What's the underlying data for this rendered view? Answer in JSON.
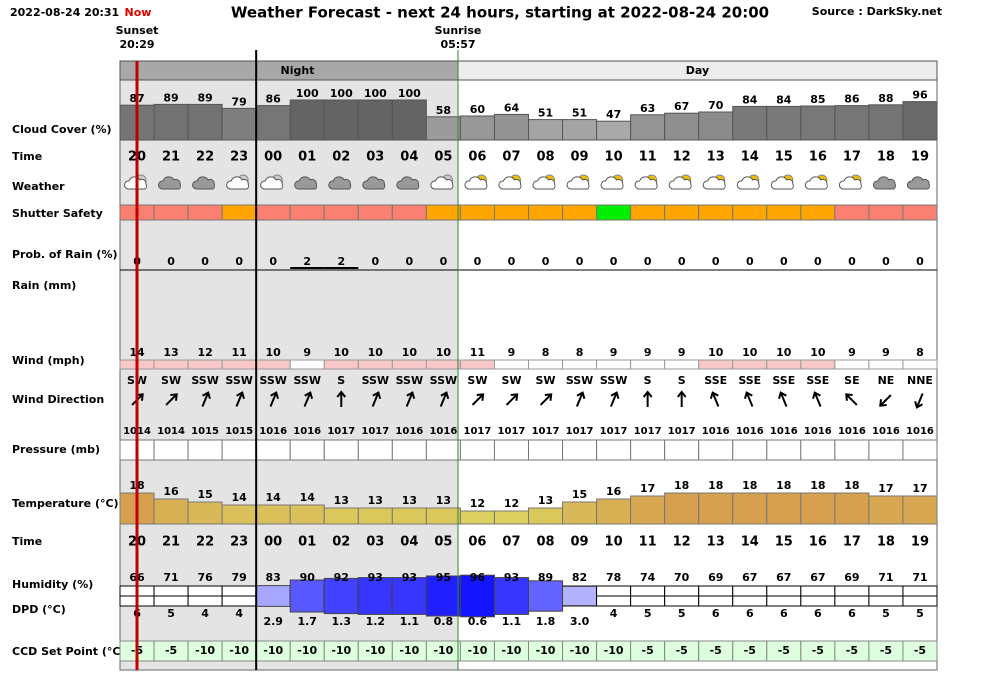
{
  "header": {
    "timestamp": "2022-08-24 20:31",
    "now": "Now",
    "title": "Weather Forecast - next 24 hours, starting at 2022-08-24 20:00",
    "source": "Source : DarkSky.net"
  },
  "sunset": {
    "label": "Sunset",
    "time": "20:29"
  },
  "sunrise": {
    "label": "Sunrise",
    "time": "05:57"
  },
  "periods": [
    "Night",
    "Day"
  ],
  "row_labels": [
    "Cloud Cover (%)",
    "Time",
    "Weather",
    "Shutter Safety",
    "Prob. of Rain (%)",
    "Rain (mm)",
    "Wind (mph)",
    "Wind Direction",
    "Pressure (mb)",
    "Temperature (°C)",
    "Time",
    "Humidity (%)",
    "DPD (°C)",
    "CCD Set Point (°C)"
  ],
  "hours": [
    "20",
    "21",
    "22",
    "23",
    "00",
    "01",
    "02",
    "03",
    "04",
    "05",
    "06",
    "07",
    "08",
    "09",
    "10",
    "11",
    "12",
    "13",
    "14",
    "15",
    "16",
    "17",
    "18",
    "19"
  ],
  "cloud_cover": [
    87,
    89,
    89,
    79,
    86,
    100,
    100,
    100,
    100,
    58,
    60,
    64,
    51,
    51,
    47,
    63,
    67,
    70,
    84,
    84,
    85,
    86,
    88,
    96
  ],
  "shutter_safety_colors": [
    "#fa8072",
    "#fa8072",
    "#fa8072",
    "#ffa500",
    "#fa8072",
    "#fa8072",
    "#fa8072",
    "#fa8072",
    "#fa8072",
    "#ffa500",
    "#ffa500",
    "#ffa500",
    "#ffa500",
    "#ffa500",
    "#00ee00",
    "#ffa500",
    "#ffa500",
    "#ffa500",
    "#ffa500",
    "#ffa500",
    "#ffa500",
    "#fa8072",
    "#fa8072",
    "#fa8072"
  ],
  "rain_probability": [
    0,
    0,
    0,
    0,
    0,
    2,
    2,
    0,
    0,
    0,
    0,
    0,
    0,
    0,
    0,
    0,
    0,
    0,
    0,
    0,
    0,
    0,
    0,
    0
  ],
  "wind_speed": [
    14,
    13,
    12,
    11,
    10,
    9,
    10,
    10,
    10,
    10,
    11,
    9,
    8,
    8,
    9,
    9,
    9,
    10,
    10,
    10,
    10,
    9,
    9,
    8
  ],
  "wind_direction": [
    "SW",
    "SW",
    "SSW",
    "SSW",
    "SSW",
    "SSW",
    "S",
    "SSW",
    "SSW",
    "SSW",
    "SW",
    "SW",
    "SW",
    "SSW",
    "SSW",
    "S",
    "S",
    "SSE",
    "SSE",
    "SSE",
    "SSE",
    "SE",
    "NE",
    "NNE"
  ],
  "pressure": [
    1014,
    1014,
    1015,
    1015,
    1016,
    1016,
    1017,
    1017,
    1016,
    1016,
    1017,
    1017,
    1017,
    1017,
    1017,
    1017,
    1017,
    1016,
    1016,
    1016,
    1016,
    1016,
    1016,
    1016
  ],
  "temperature": [
    18,
    16,
    15,
    14,
    14,
    14,
    13,
    13,
    13,
    13,
    12,
    12,
    13,
    15,
    16,
    17,
    18,
    18,
    18,
    18,
    18,
    18,
    17,
    17
  ],
  "humidity": [
    66,
    71,
    76,
    79,
    83,
    90,
    92,
    93,
    93,
    95,
    96,
    93,
    89,
    82,
    78,
    74,
    70,
    69,
    67,
    67,
    67,
    69,
    71,
    71
  ],
  "dpd": [
    "6",
    "5",
    "4",
    "4",
    "2.9",
    "1.7",
    "1.3",
    "1.2",
    "1.1",
    "0.8",
    "0.6",
    "1.1",
    "1.8",
    "3.0",
    "4",
    "5",
    "5",
    "6",
    "6",
    "6",
    "6",
    "6",
    "5",
    "5"
  ],
  "ccd_set_point": [
    -5,
    -5,
    -10,
    -10,
    -10,
    -10,
    -10,
    -10,
    -10,
    -10,
    -10,
    -10,
    -10,
    -10,
    -10,
    -5,
    -5,
    -5,
    -5,
    -5,
    -5,
    -5,
    -5,
    -5
  ]
}
